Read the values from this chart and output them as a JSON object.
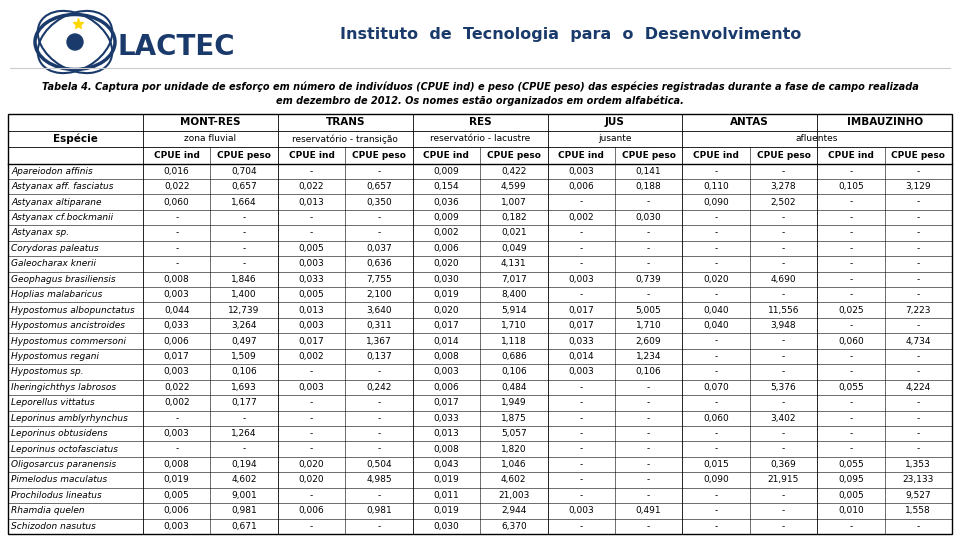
{
  "title_line1": "Tabela 4. Captura por unidade de esforço em número de indivíduos (CPUE ind) e peso (CPUE peso) das espécies registradas durante a fase de campo realizada",
  "title_line2": "em dezembro de 2012. Os nomes estão organizados em ordem alfabética.",
  "institute": "Instituto  de  Tecnologia  para  o  Desenvolvimento",
  "rows": [
    [
      "Apareiodon affinis",
      "0,016",
      "0,704",
      "-",
      "-",
      "0,009",
      "0,422",
      "0,003",
      "0,141",
      "-",
      "-",
      "-",
      "-"
    ],
    [
      "Astyanax aff. fasciatus",
      "0,022",
      "0,657",
      "0,022",
      "0,657",
      "0,154",
      "4,599",
      "0,006",
      "0,188",
      "0,110",
      "3,278",
      "0,105",
      "3,129"
    ],
    [
      "Astyanax altiparane",
      "0,060",
      "1,664",
      "0,013",
      "0,350",
      "0,036",
      "1,007",
      "-",
      "-",
      "0,090",
      "2,502",
      "-",
      "-"
    ],
    [
      "Astyanax cf.bockmanii",
      "-",
      "-",
      "-",
      "-",
      "0,009",
      "0,182",
      "0,002",
      "0,030",
      "-",
      "-",
      "-",
      "-"
    ],
    [
      "Astyanax sp.",
      "-",
      "-",
      "-",
      "-",
      "0,002",
      "0,021",
      "-",
      "-",
      "-",
      "-",
      "-",
      "-"
    ],
    [
      "Corydoras paleatus",
      "-",
      "-",
      "0,005",
      "0,037",
      "0,006",
      "0,049",
      "-",
      "-",
      "-",
      "-",
      "-",
      "-"
    ],
    [
      "Galeocharax knerii",
      "-",
      "-",
      "0,003",
      "0,636",
      "0,020",
      "4,131",
      "-",
      "-",
      "-",
      "-",
      "-",
      "-"
    ],
    [
      "Geophagus brasiliensis",
      "0,008",
      "1,846",
      "0,033",
      "7,755",
      "0,030",
      "7,017",
      "0,003",
      "0,739",
      "0,020",
      "4,690",
      "-",
      "-"
    ],
    [
      "Hoplias malabaricus",
      "0,003",
      "1,400",
      "0,005",
      "2,100",
      "0,019",
      "8,400",
      "-",
      "-",
      "-",
      "-",
      "-",
      "-"
    ],
    [
      "Hypostomus albopunctatus",
      "0,044",
      "12,739",
      "0,013",
      "3,640",
      "0,020",
      "5,914",
      "0,017",
      "5,005",
      "0,040",
      "11,556",
      "0,025",
      "7,223"
    ],
    [
      "Hypostomus ancistroides",
      "0,033",
      "3,264",
      "0,003",
      "0,311",
      "0,017",
      "1,710",
      "0,017",
      "1,710",
      "0,040",
      "3,948",
      "-",
      "-"
    ],
    [
      "Hypostomus commersoni",
      "0,006",
      "0,497",
      "0,017",
      "1,367",
      "0,014",
      "1,118",
      "0,033",
      "2,609",
      "-",
      "-",
      "0,060",
      "4,734"
    ],
    [
      "Hypostomus regani",
      "0,017",
      "1,509",
      "0,002",
      "0,137",
      "0,008",
      "0,686",
      "0,014",
      "1,234",
      "-",
      "-",
      "-",
      "-"
    ],
    [
      "Hypostomus sp.",
      "0,003",
      "0,106",
      "-",
      "-",
      "0,003",
      "0,106",
      "0,003",
      "0,106",
      "-",
      "-",
      "-",
      "-"
    ],
    [
      "Iheringichthys labrosos",
      "0,022",
      "1,693",
      "0,003",
      "0,242",
      "0,006",
      "0,484",
      "-",
      "-",
      "0,070",
      "5,376",
      "0,055",
      "4,224"
    ],
    [
      "Leporellus vittatus",
      "0,002",
      "0,177",
      "-",
      "-",
      "0,017",
      "1,949",
      "-",
      "-",
      "-",
      "-",
      "-",
      "-"
    ],
    [
      "Leporinus amblyrhynchus",
      "-",
      "-",
      "-",
      "-",
      "0,033",
      "1,875",
      "-",
      "-",
      "0,060",
      "3,402",
      "-",
      "-"
    ],
    [
      "Leporinus obtusidens",
      "0,003",
      "1,264",
      "-",
      "-",
      "0,013",
      "5,057",
      "-",
      "-",
      "-",
      "-",
      "-",
      "-"
    ],
    [
      "Leporinus octofasciatus",
      "-",
      "-",
      "-",
      "-",
      "0,008",
      "1,820",
      "-",
      "-",
      "-",
      "-",
      "-",
      "-"
    ],
    [
      "Oligosarcus paranensis",
      "0,008",
      "0,194",
      "0,020",
      "0,504",
      "0,043",
      "1,046",
      "-",
      "-",
      "0,015",
      "0,369",
      "0,055",
      "1,353"
    ],
    [
      "Pimelodus maculatus",
      "0,019",
      "4,602",
      "0,020",
      "4,985",
      "0,019",
      "4,602",
      "-",
      "-",
      "0,090",
      "21,915",
      "0,095",
      "23,133"
    ],
    [
      "Prochilodus lineatus",
      "0,005",
      "9,001",
      "-",
      "-",
      "0,011",
      "21,003",
      "-",
      "-",
      "-",
      "-",
      "0,005",
      "9,527"
    ],
    [
      "Rhamdia quelen",
      "0,006",
      "0,981",
      "0,006",
      "0,981",
      "0,019",
      "2,944",
      "0,003",
      "0,491",
      "-",
      "-",
      "0,010",
      "1,558"
    ],
    [
      "Schizodon nasutus",
      "0,003",
      "0,671",
      "-",
      "-",
      "0,030",
      "6,370",
      "-",
      "-",
      "-",
      "-",
      "-",
      "-"
    ]
  ],
  "background_color": "#ffffff",
  "line_color": "#000000",
  "text_color": "#000000",
  "header_text_color": "#000000",
  "institute_color": "#1a3a6b",
  "fig_width": 9.6,
  "fig_height": 5.38,
  "font_size_data": 6.5,
  "font_size_header3": 6.5,
  "font_size_header12": 7.5,
  "font_size_title": 7.0,
  "font_size_institute": 11.5
}
